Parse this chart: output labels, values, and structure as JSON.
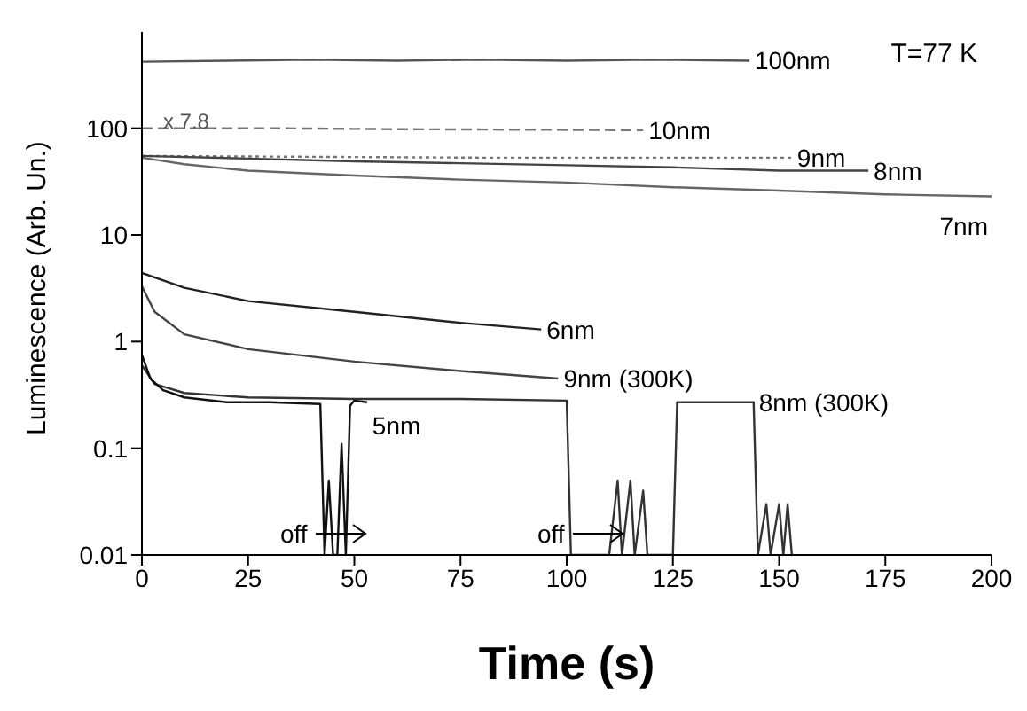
{
  "chart_data": {
    "type": "line",
    "xlabel": "Time   (s)",
    "ylabel": "Luminescence  (Arb. Un.)",
    "log": "y",
    "xlim": [
      0,
      200
    ],
    "xticks": [
      0,
      25,
      50,
      75,
      100,
      125,
      150,
      175,
      200
    ],
    "ylim": [
      0.01,
      800
    ],
    "yticks": [
      0.01,
      0.1,
      1,
      10,
      100
    ],
    "grid": false,
    "legend": false,
    "marker": "none",
    "series": [
      {
        "name": "100nm",
        "color": "#555555",
        "line_style": "solid",
        "x": [
          0,
          20,
          40,
          60,
          80,
          100,
          120,
          143
        ],
        "values": [
          420,
          430,
          440,
          430,
          440,
          430,
          440,
          430
        ]
      },
      {
        "name": "10nm",
        "color": "#777777",
        "line_style": "dashed",
        "x": [
          0,
          30,
          60,
          90,
          118
        ],
        "values": [
          100,
          100,
          98,
          97,
          96
        ]
      },
      {
        "name": "9nm",
        "color": "#777777",
        "line_style": "dotted",
        "x": [
          0,
          40,
          80,
          120,
          153
        ],
        "values": [
          55,
          54,
          53,
          53,
          53
        ]
      },
      {
        "name": "8nm",
        "color": "#444444",
        "line_style": "solid",
        "x": [
          0,
          25,
          50,
          75,
          100,
          125,
          150,
          171
        ],
        "values": [
          55,
          52,
          49,
          47,
          45,
          43,
          40,
          40
        ]
      },
      {
        "name": "7nm",
        "color": "#666666",
        "line_style": "solid",
        "x": [
          0,
          10,
          25,
          50,
          75,
          100,
          125,
          150,
          175,
          200
        ],
        "values": [
          53,
          46,
          40,
          36,
          33,
          31,
          28,
          26,
          24,
          23
        ]
      },
      {
        "name": "6nm",
        "color": "#222222",
        "line_style": "solid",
        "x": [
          0,
          10,
          25,
          50,
          75,
          94
        ],
        "values": [
          4.4,
          3.2,
          2.4,
          1.9,
          1.5,
          1.3
        ]
      },
      {
        "name": "9nm (300K)",
        "color": "#444444",
        "line_style": "solid",
        "x": [
          0,
          3,
          10,
          25,
          50,
          75,
          98
        ],
        "values": [
          3.3,
          1.9,
          1.17,
          0.85,
          0.65,
          0.53,
          0.45
        ]
      },
      {
        "name": "8nm (300K)",
        "color": "#333333",
        "line_style": "solid",
        "x": [
          0,
          3,
          10,
          25,
          50,
          75,
          100,
          101,
          110,
          112,
          113,
          115,
          116,
          118,
          119,
          125,
          126,
          135,
          144,
          145,
          147,
          148,
          150,
          151,
          152,
          153
        ],
        "values": [
          0.6,
          0.4,
          0.33,
          0.3,
          0.29,
          0.29,
          0.28,
          0.01,
          0.01,
          0.05,
          0.01,
          0.05,
          0.01,
          0.04,
          0.01,
          0.01,
          0.27,
          0.27,
          0.27,
          0.01,
          0.03,
          0.01,
          0.03,
          0.01,
          0.03,
          0.01
        ]
      },
      {
        "name": "5nm",
        "color": "#111111",
        "line_style": "solid",
        "x": [
          0,
          2,
          5,
          10,
          20,
          30,
          42,
          43,
          44,
          45,
          46,
          47,
          48,
          49,
          50,
          53
        ],
        "values": [
          0.75,
          0.45,
          0.35,
          0.3,
          0.27,
          0.27,
          0.26,
          0.01,
          0.05,
          0.01,
          0.01,
          0.11,
          0.01,
          0.25,
          0.28,
          0.27
        ]
      }
    ],
    "annotations": [
      "T=77 K",
      {
        "text": "x 7.8",
        "x": 5,
        "y": 100
      },
      "off",
      "off"
    ]
  }
}
